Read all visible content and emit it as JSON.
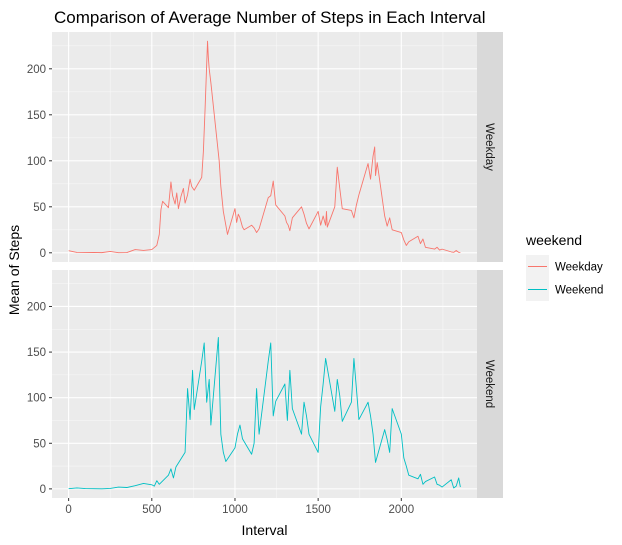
{
  "chart_data": {
    "type": "line",
    "title": "Comparison of Average Number of Steps in Each Interval",
    "xlabel": "Interval",
    "ylabel": "Mean of Steps",
    "xlim": [
      -100,
      2455
    ],
    "ylim": [
      -10,
      240
    ],
    "xticks": [
      0,
      500,
      1000,
      1500,
      2000
    ],
    "yticks": [
      0,
      50,
      100,
      150,
      200
    ],
    "grid": true,
    "facet_by": "weekend",
    "legend": {
      "title": "weekend",
      "placement": "right"
    },
    "panels": [
      {
        "label": "Weekday",
        "color": "#F8766D",
        "series": {
          "name": "Weekday",
          "x": [
            0,
            50,
            100,
            150,
            200,
            250,
            300,
            350,
            400,
            450,
            500,
            530,
            545,
            555,
            565,
            600,
            615,
            625,
            640,
            650,
            660,
            675,
            690,
            700,
            715,
            730,
            740,
            755,
            800,
            810,
            820,
            830,
            835,
            840,
            845,
            855,
            905,
            915,
            930,
            945,
            955,
            1000,
            1010,
            1020,
            1030,
            1045,
            1055,
            1100,
            1115,
            1130,
            1145,
            1200,
            1215,
            1230,
            1245,
            1300,
            1310,
            1320,
            1330,
            1345,
            1400,
            1415,
            1430,
            1445,
            1500,
            1515,
            1530,
            1545,
            1550,
            1555,
            1600,
            1615,
            1630,
            1645,
            1700,
            1715,
            1730,
            1745,
            1800,
            1815,
            1830,
            1840,
            1845,
            1855,
            1900,
            1915,
            1930,
            1945,
            2000,
            2015,
            2030,
            2045,
            2100,
            2115,
            2130,
            2145,
            2200,
            2215,
            2230,
            2245,
            2300,
            2315,
            2330,
            2345,
            2355
          ],
          "y": [
            2.3,
            0.4,
            0.3,
            0.4,
            0.2,
            1.5,
            0.1,
            0.3,
            3.5,
            2.6,
            3.5,
            8,
            20,
            47,
            56,
            49,
            77,
            62,
            53,
            65,
            48,
            61,
            70,
            54,
            63,
            80,
            72,
            68,
            82,
            110,
            155,
            205,
            230,
            212,
            200,
            185,
            100,
            72,
            45,
            30,
            20,
            48,
            33,
            42,
            38,
            28,
            25,
            30,
            27,
            22,
            26,
            60,
            62,
            78,
            52,
            40,
            33,
            30,
            24,
            38,
            50,
            42,
            32,
            26,
            45,
            30,
            40,
            30,
            45,
            28,
            50,
            93,
            70,
            48,
            46,
            38,
            52,
            63,
            97,
            80,
            105,
            115,
            84,
            98,
            40,
            29,
            38,
            25,
            22,
            14,
            8,
            12,
            18,
            10,
            15,
            6,
            4,
            6,
            3,
            4,
            1,
            0.5,
            2.5,
            0.5,
            0.4
          ]
        }
      },
      {
        "label": "Weekend",
        "color": "#00BFC4",
        "series": {
          "name": "Weekend",
          "x": [
            0,
            50,
            100,
            150,
            200,
            250,
            300,
            350,
            400,
            450,
            500,
            515,
            530,
            545,
            600,
            615,
            630,
            645,
            700,
            715,
            730,
            745,
            755,
            800,
            815,
            830,
            845,
            855,
            900,
            915,
            930,
            945,
            1000,
            1015,
            1030,
            1045,
            1100,
            1115,
            1130,
            1145,
            1200,
            1215,
            1230,
            1245,
            1300,
            1315,
            1330,
            1345,
            1400,
            1415,
            1430,
            1445,
            1500,
            1515,
            1530,
            1545,
            1600,
            1615,
            1630,
            1645,
            1700,
            1715,
            1730,
            1745,
            1800,
            1815,
            1830,
            1845,
            1900,
            1915,
            1930,
            1945,
            2000,
            2015,
            2030,
            2045,
            2100,
            2115,
            2130,
            2145,
            2200,
            2215,
            2230,
            2245,
            2300,
            2315,
            2330,
            2345,
            2355
          ],
          "y": [
            0.2,
            1,
            0.3,
            0.2,
            0.1,
            0.5,
            2,
            1.5,
            3.5,
            6,
            4.5,
            3,
            9,
            5,
            15,
            22,
            12,
            24,
            40,
            110,
            76,
            130,
            87,
            140,
            160,
            95,
            120,
            70,
            166,
            60,
            40,
            30,
            45,
            60,
            70,
            55,
            38,
            50,
            110,
            60,
            140,
            160,
            80,
            96,
            115,
            75,
            130,
            88,
            60,
            95,
            80,
            60,
            40,
            90,
            115,
            143,
            85,
            120,
            102,
            74,
            95,
            143,
            110,
            76,
            95,
            80,
            60,
            29,
            65,
            54,
            40,
            88,
            60,
            34,
            25,
            15,
            11,
            16,
            5,
            8,
            13,
            5,
            4,
            2,
            10,
            1,
            3,
            12,
            2
          ]
        }
      }
    ]
  }
}
